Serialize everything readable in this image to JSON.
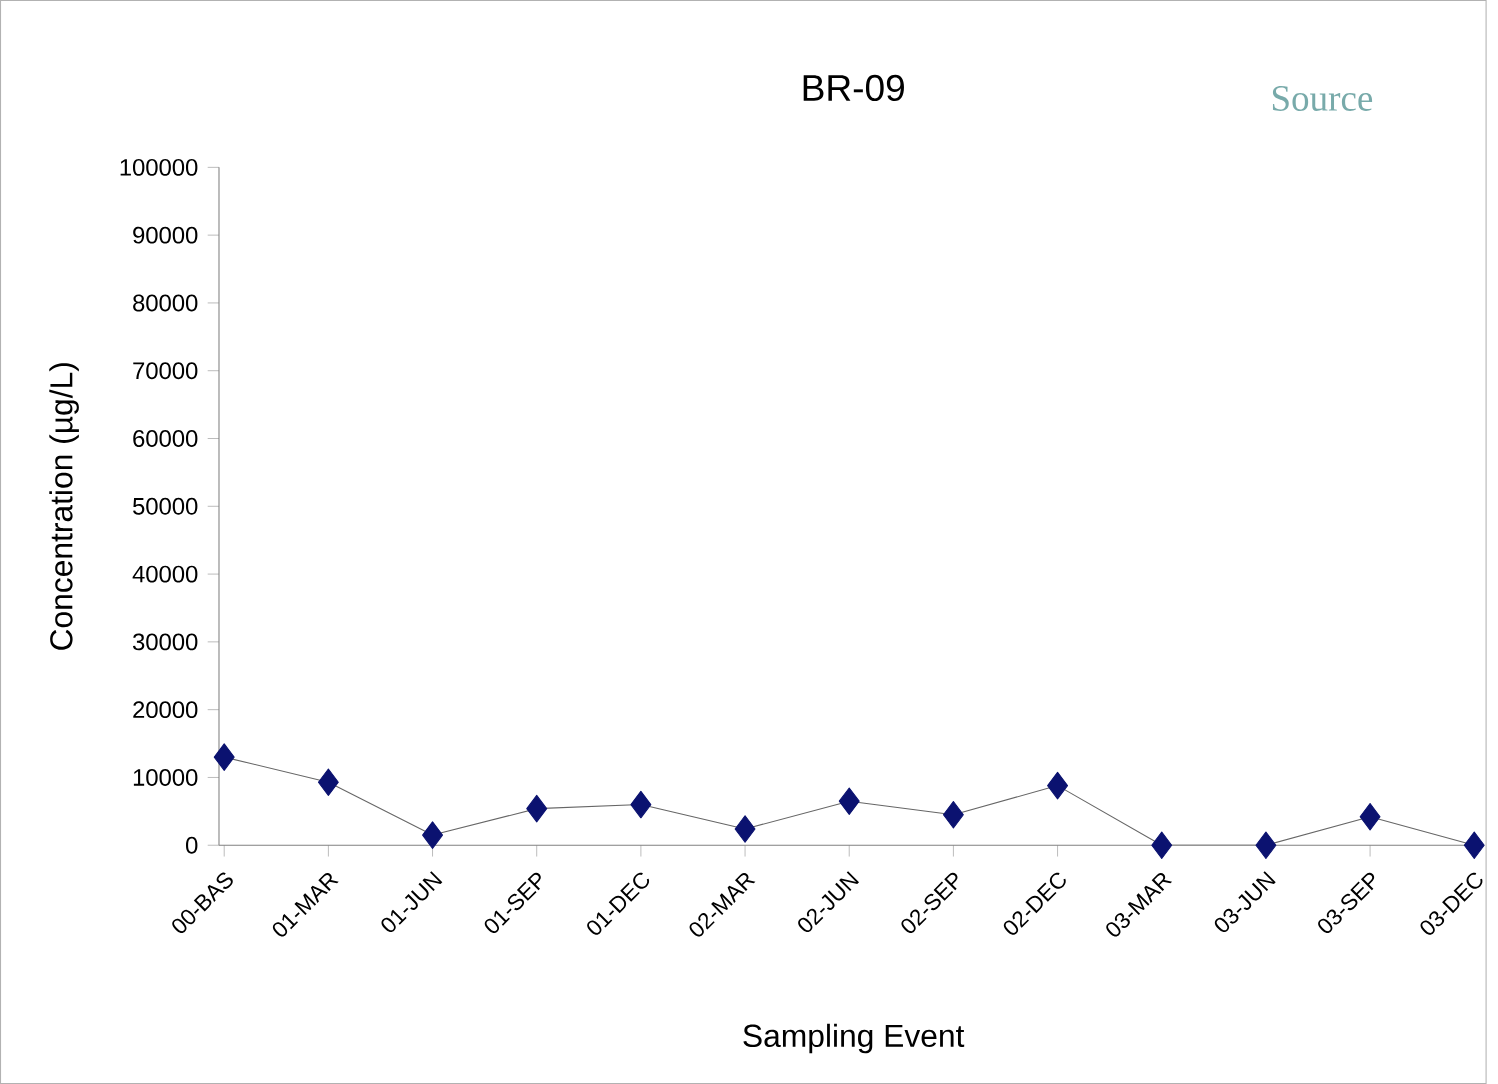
{
  "chart_data": {
    "type": "line",
    "title": "BR-09",
    "xlabel": "Sampling Event",
    "ylabel": "Concentration (µg/L)",
    "annotations": [
      "Source"
    ],
    "categories": [
      "00-BAS",
      "01-MAR",
      "01-JUN",
      "01-SEP",
      "01-DEC",
      "02-MAR",
      "02-JUN",
      "02-SEP",
      "02-DEC",
      "03-MAR",
      "03-JUN",
      "03-SEP",
      "03-DEC"
    ],
    "series": [
      {
        "color": "#0b1270",
        "values": [
          13000,
          9300,
          1500,
          5400,
          6000,
          2400,
          6500,
          4500,
          8800,
          0,
          0,
          4200,
          0
        ]
      }
    ],
    "ylim": [
      0,
      100000
    ],
    "yticks": [
      0,
      10000,
      20000,
      30000,
      40000,
      50000,
      60000,
      70000,
      80000,
      90000,
      100000
    ],
    "grid": false,
    "marker": "diamond",
    "line_style": "solid"
  }
}
